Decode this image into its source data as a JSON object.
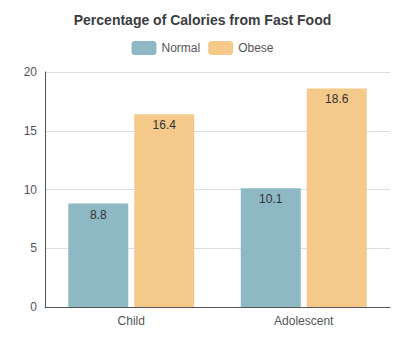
{
  "chart_data": {
    "type": "bar",
    "title": "Percentage of Calories from Fast Food",
    "categories": [
      "Child",
      "Adolescent"
    ],
    "series": [
      {
        "name": "Normal",
        "color": "#8DB8C4",
        "values": [
          8.8,
          10.1
        ]
      },
      {
        "name": "Obese",
        "color": "#F5C98A",
        "values": [
          16.4,
          18.6
        ]
      }
    ],
    "ylim": [
      0,
      20
    ],
    "yticks": [
      0,
      5,
      10,
      15,
      20
    ],
    "grid": true,
    "legend": "top",
    "data_labels": true
  }
}
